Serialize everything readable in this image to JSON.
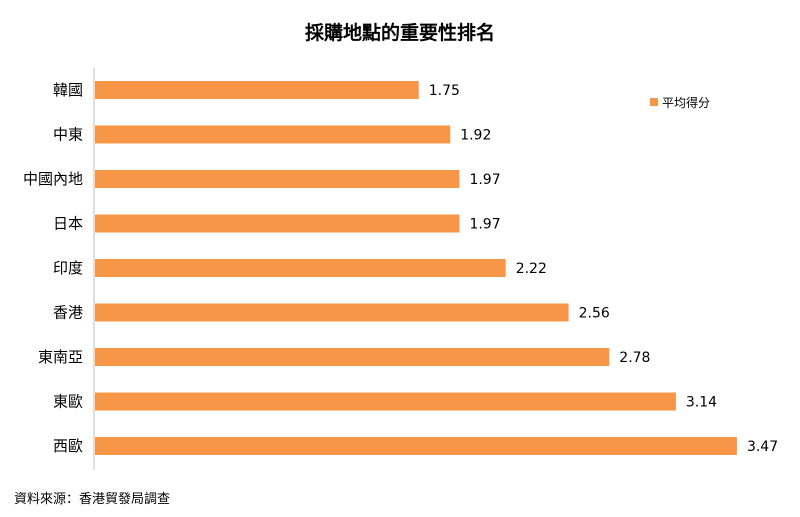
{
  "chart_data": {
    "type": "bar",
    "orientation": "horizontal",
    "title": "採購地點的重要性排名",
    "categories": [
      "韓國",
      "中東",
      "中國內地",
      "日本",
      "印度",
      "香港",
      "東南亞",
      "東歐",
      "西歐"
    ],
    "series": [
      {
        "name": "平均得分",
        "values": [
          1.75,
          1.92,
          1.97,
          1.97,
          2.22,
          2.56,
          2.78,
          3.14,
          3.47
        ],
        "labels": [
          "1.75",
          "1.92",
          "1.97",
          "1.97",
          "2.22",
          "2.56",
          "2.78",
          "3.14",
          "3.47"
        ],
        "color": "#F79646"
      }
    ],
    "xlim": [
      0,
      3.5
    ],
    "grid": false,
    "legend": "top-right"
  },
  "source": "資料來源：香港貿發局調查"
}
